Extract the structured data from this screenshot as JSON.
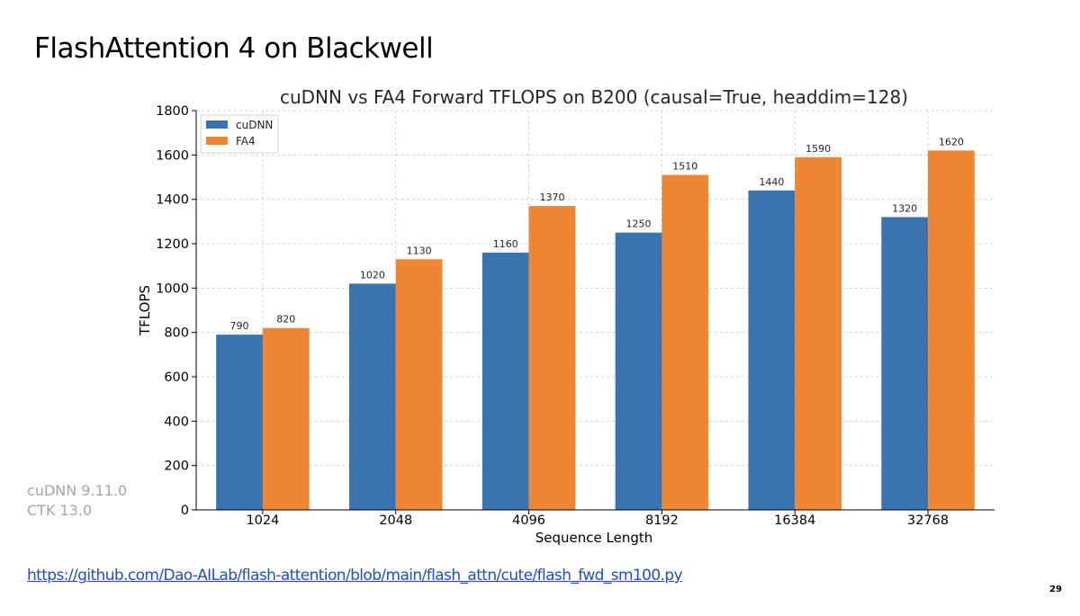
{
  "slide": {
    "title": "FlashAttention 4 on Blackwell",
    "versions": [
      "cuDNN 9.11.0",
      "CTK 13.0"
    ],
    "link": "https://github.com/Dao-AILab/flash-attention/blob/main/flash_attn/cute/flash_fwd_sm100.py",
    "page_number": "29"
  },
  "chart_data": {
    "type": "bar",
    "title": "cuDNN vs FA4 Forward TFLOPS on B200 (causal=True, headdim=128)",
    "xlabel": "Sequence Length",
    "ylabel": "TFLOPS",
    "categories": [
      "1024",
      "2048",
      "4096",
      "8192",
      "16384",
      "32768"
    ],
    "series": [
      {
        "name": "cuDNN",
        "color": "#3a74b0",
        "values": [
          790,
          1020,
          1160,
          1250,
          1440,
          1320
        ]
      },
      {
        "name": "FA4",
        "color": "#ee8634",
        "values": [
          820,
          1130,
          1370,
          1510,
          1590,
          1620
        ]
      }
    ],
    "ylim": [
      0,
      1800
    ],
    "yticks": [
      0,
      200,
      400,
      600,
      800,
      1000,
      1200,
      1400,
      1600,
      1800
    ],
    "grid": true,
    "legend": "top-left"
  }
}
